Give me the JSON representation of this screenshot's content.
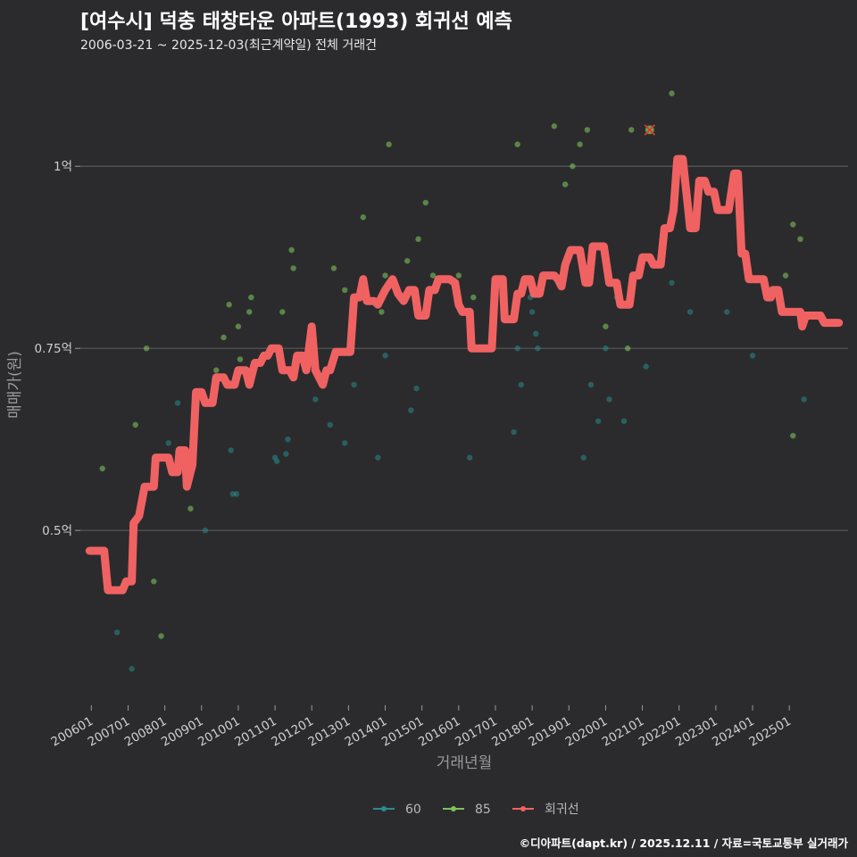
{
  "header": {
    "title": "[여수시] 덕충 태창타운 아파트(1993) 회귀선 예측",
    "subtitle": "2006-03-21 ~ 2025-12-03(최근계약일) 전체 거래건"
  },
  "footer": {
    "credit": "©디아파트(dapt.kr) / 2025.12.11 / 자료=국토교통부 실거래가"
  },
  "colors": {
    "s60": "#2a8b8b",
    "s85": "#7cc25a",
    "line": "#f06262",
    "grid": "#5a5a5a",
    "cross": "#d9382a"
  },
  "chart_data": {
    "type": "scatter",
    "title": "[여수시] 덕충 태창타운 아파트(1993) 회귀선 예측",
    "xlabel": "거래년월",
    "ylabel": "매매가(원)",
    "xlim": [
      2005.7,
      2026.6
    ],
    "ylim": [
      0.26,
      1.14
    ],
    "x_ticks": [
      {
        "x": 2006.0,
        "label": "200601"
      },
      {
        "x": 2007.0,
        "label": "200701"
      },
      {
        "x": 2008.0,
        "label": "200801"
      },
      {
        "x": 2009.0,
        "label": "200901"
      },
      {
        "x": 2010.0,
        "label": "201001"
      },
      {
        "x": 2011.0,
        "label": "201101"
      },
      {
        "x": 2012.0,
        "label": "201201"
      },
      {
        "x": 2013.0,
        "label": "201301"
      },
      {
        "x": 2014.0,
        "label": "201401"
      },
      {
        "x": 2015.0,
        "label": "201501"
      },
      {
        "x": 2016.0,
        "label": "201601"
      },
      {
        "x": 2017.0,
        "label": "201701"
      },
      {
        "x": 2018.0,
        "label": "201801"
      },
      {
        "x": 2019.0,
        "label": "201901"
      },
      {
        "x": 2020.0,
        "label": "202001"
      },
      {
        "x": 2021.0,
        "label": "202101"
      },
      {
        "x": 2022.0,
        "label": "202201"
      },
      {
        "x": 2023.0,
        "label": "202301"
      },
      {
        "x": 2024.0,
        "label": "202401"
      },
      {
        "x": 2025.0,
        "label": "202501"
      }
    ],
    "y_ticks": [
      {
        "y": 0.5,
        "label": "0.5억"
      },
      {
        "y": 0.75,
        "label": "0.75억"
      },
      {
        "y": 1.0,
        "label": "1억"
      }
    ],
    "legend": [
      {
        "key": "s60",
        "label": "60"
      },
      {
        "key": "s85",
        "label": "85"
      },
      {
        "key": "line",
        "label": "회귀선"
      }
    ],
    "series": [
      {
        "name": "60",
        "points": [
          [
            2006.7,
            0.36
          ],
          [
            2007.1,
            0.31
          ],
          [
            2008.1,
            0.62
          ],
          [
            2008.35,
            0.675
          ],
          [
            2009.1,
            0.5
          ],
          [
            2009.8,
            0.61
          ],
          [
            2009.85,
            0.55
          ],
          [
            2009.95,
            0.55
          ],
          [
            2010.2,
            0.715
          ],
          [
            2011.0,
            0.6
          ],
          [
            2011.05,
            0.595
          ],
          [
            2011.3,
            0.605
          ],
          [
            2011.35,
            0.625
          ],
          [
            2012.1,
            0.68
          ],
          [
            2012.5,
            0.645
          ],
          [
            2012.9,
            0.62
          ],
          [
            2013.15,
            0.7
          ],
          [
            2013.8,
            0.6
          ],
          [
            2014.0,
            0.74
          ],
          [
            2014.7,
            0.665
          ],
          [
            2014.85,
            0.695
          ],
          [
            2016.3,
            0.6
          ],
          [
            2017.5,
            0.635
          ],
          [
            2017.6,
            0.75
          ],
          [
            2017.7,
            0.7
          ],
          [
            2017.95,
            0.82
          ],
          [
            2018.0,
            0.8
          ],
          [
            2018.1,
            0.77
          ],
          [
            2018.15,
            0.75
          ],
          [
            2019.4,
            0.6
          ],
          [
            2019.6,
            0.7
          ],
          [
            2019.8,
            0.65
          ],
          [
            2020.0,
            0.75
          ],
          [
            2020.1,
            0.68
          ],
          [
            2020.3,
            0.82
          ],
          [
            2020.5,
            0.65
          ],
          [
            2021.1,
            0.725
          ],
          [
            2021.8,
            0.84
          ],
          [
            2022.3,
            0.8
          ],
          [
            2023.3,
            0.8
          ],
          [
            2024.0,
            0.74
          ],
          [
            2025.4,
            0.68
          ]
        ]
      },
      {
        "name": "85",
        "points": [
          [
            2006.3,
            0.585
          ],
          [
            2007.2,
            0.645
          ],
          [
            2007.5,
            0.75
          ],
          [
            2007.7,
            0.43
          ],
          [
            2007.9,
            0.355
          ],
          [
            2008.7,
            0.53
          ],
          [
            2009.4,
            0.72
          ],
          [
            2009.6,
            0.765
          ],
          [
            2009.75,
            0.81
          ],
          [
            2010.0,
            0.78
          ],
          [
            2010.05,
            0.735
          ],
          [
            2010.3,
            0.8
          ],
          [
            2010.35,
            0.82
          ],
          [
            2011.2,
            0.8
          ],
          [
            2011.45,
            0.885
          ],
          [
            2011.5,
            0.86
          ],
          [
            2012.6,
            0.86
          ],
          [
            2012.9,
            0.83
          ],
          [
            2013.4,
            0.93
          ],
          [
            2013.9,
            0.8
          ],
          [
            2014.0,
            0.85
          ],
          [
            2014.1,
            1.03
          ],
          [
            2014.6,
            0.87
          ],
          [
            2014.9,
            0.9
          ],
          [
            2015.1,
            0.95
          ],
          [
            2015.3,
            0.85
          ],
          [
            2016.0,
            0.85
          ],
          [
            2016.4,
            0.82
          ],
          [
            2017.6,
            1.03
          ],
          [
            2018.6,
            1.055
          ],
          [
            2018.9,
            0.975
          ],
          [
            2019.1,
            1.0
          ],
          [
            2019.3,
            1.03
          ],
          [
            2019.5,
            1.05
          ],
          [
            2020.0,
            0.78
          ],
          [
            2020.6,
            0.75
          ],
          [
            2020.7,
            1.05
          ],
          [
            2021.2,
            1.05
          ],
          [
            2021.8,
            1.1
          ],
          [
            2023.0,
            0.96
          ],
          [
            2024.9,
            0.85
          ],
          [
            2025.1,
            0.63
          ],
          [
            2025.1,
            0.92
          ],
          [
            2025.3,
            0.9
          ]
        ]
      },
      {
        "name": "회귀선",
        "points": [
          [
            2005.95,
            0.472
          ],
          [
            2006.35,
            0.472
          ],
          [
            2006.45,
            0.418
          ],
          [
            2006.85,
            0.418
          ],
          [
            2006.95,
            0.43
          ],
          [
            2007.1,
            0.43
          ],
          [
            2007.15,
            0.51
          ],
          [
            2007.3,
            0.52
          ],
          [
            2007.45,
            0.56
          ],
          [
            2007.7,
            0.56
          ],
          [
            2007.75,
            0.6
          ],
          [
            2008.1,
            0.6
          ],
          [
            2008.2,
            0.58
          ],
          [
            2008.35,
            0.58
          ],
          [
            2008.4,
            0.61
          ],
          [
            2008.55,
            0.61
          ],
          [
            2008.6,
            0.56
          ],
          [
            2008.75,
            0.59
          ],
          [
            2008.85,
            0.69
          ],
          [
            2009.0,
            0.69
          ],
          [
            2009.1,
            0.675
          ],
          [
            2009.3,
            0.675
          ],
          [
            2009.4,
            0.71
          ],
          [
            2009.6,
            0.71
          ],
          [
            2009.7,
            0.7
          ],
          [
            2009.9,
            0.7
          ],
          [
            2010.0,
            0.72
          ],
          [
            2010.2,
            0.72
          ],
          [
            2010.3,
            0.7
          ],
          [
            2010.45,
            0.73
          ],
          [
            2010.6,
            0.73
          ],
          [
            2010.7,
            0.74
          ],
          [
            2010.8,
            0.74
          ],
          [
            2010.9,
            0.75
          ],
          [
            2011.1,
            0.75
          ],
          [
            2011.2,
            0.72
          ],
          [
            2011.4,
            0.72
          ],
          [
            2011.5,
            0.71
          ],
          [
            2011.6,
            0.74
          ],
          [
            2011.75,
            0.74
          ],
          [
            2011.85,
            0.72
          ],
          [
            2012.0,
            0.78
          ],
          [
            2012.1,
            0.72
          ],
          [
            2012.3,
            0.7
          ],
          [
            2012.4,
            0.72
          ],
          [
            2012.5,
            0.72
          ],
          [
            2012.65,
            0.745
          ],
          [
            2012.9,
            0.745
          ],
          [
            2013.05,
            0.745
          ],
          [
            2013.15,
            0.82
          ],
          [
            2013.3,
            0.82
          ],
          [
            2013.4,
            0.845
          ],
          [
            2013.5,
            0.815
          ],
          [
            2013.7,
            0.815
          ],
          [
            2013.8,
            0.81
          ],
          [
            2014.0,
            0.83
          ],
          [
            2014.2,
            0.845
          ],
          [
            2014.35,
            0.825
          ],
          [
            2014.5,
            0.815
          ],
          [
            2014.65,
            0.83
          ],
          [
            2014.8,
            0.83
          ],
          [
            2014.9,
            0.795
          ],
          [
            2015.1,
            0.795
          ],
          [
            2015.2,
            0.83
          ],
          [
            2015.35,
            0.83
          ],
          [
            2015.45,
            0.845
          ],
          [
            2015.75,
            0.845
          ],
          [
            2015.9,
            0.84
          ],
          [
            2016.0,
            0.81
          ],
          [
            2016.1,
            0.8
          ],
          [
            2016.3,
            0.8
          ],
          [
            2016.35,
            0.75
          ],
          [
            2016.9,
            0.75
          ],
          [
            2017.0,
            0.845
          ],
          [
            2017.2,
            0.845
          ],
          [
            2017.25,
            0.79
          ],
          [
            2017.5,
            0.79
          ],
          [
            2017.6,
            0.825
          ],
          [
            2017.7,
            0.825
          ],
          [
            2017.8,
            0.845
          ],
          [
            2017.95,
            0.845
          ],
          [
            2018.05,
            0.825
          ],
          [
            2018.2,
            0.825
          ],
          [
            2018.3,
            0.85
          ],
          [
            2018.6,
            0.85
          ],
          [
            2018.7,
            0.845
          ],
          [
            2018.8,
            0.835
          ],
          [
            2018.9,
            0.865
          ],
          [
            2019.05,
            0.885
          ],
          [
            2019.3,
            0.885
          ],
          [
            2019.45,
            0.84
          ],
          [
            2019.55,
            0.84
          ],
          [
            2019.65,
            0.89
          ],
          [
            2019.95,
            0.89
          ],
          [
            2020.1,
            0.84
          ],
          [
            2020.3,
            0.84
          ],
          [
            2020.4,
            0.81
          ],
          [
            2020.65,
            0.81
          ],
          [
            2020.75,
            0.85
          ],
          [
            2020.9,
            0.85
          ],
          [
            2021.0,
            0.875
          ],
          [
            2021.2,
            0.875
          ],
          [
            2021.3,
            0.865
          ],
          [
            2021.5,
            0.865
          ],
          [
            2021.6,
            0.915
          ],
          [
            2021.75,
            0.915
          ],
          [
            2021.85,
            0.94
          ],
          [
            2021.95,
            1.01
          ],
          [
            2022.1,
            1.01
          ],
          [
            2022.25,
            0.94
          ],
          [
            2022.3,
            0.915
          ],
          [
            2022.45,
            0.915
          ],
          [
            2022.55,
            0.98
          ],
          [
            2022.7,
            0.98
          ],
          [
            2022.8,
            0.965
          ],
          [
            2022.95,
            0.965
          ],
          [
            2023.05,
            0.94
          ],
          [
            2023.35,
            0.94
          ],
          [
            2023.5,
            0.99
          ],
          [
            2023.6,
            0.99
          ],
          [
            2023.7,
            0.88
          ],
          [
            2023.8,
            0.88
          ],
          [
            2023.9,
            0.845
          ],
          [
            2024.3,
            0.845
          ],
          [
            2024.4,
            0.82
          ],
          [
            2024.5,
            0.82
          ],
          [
            2024.55,
            0.83
          ],
          [
            2024.7,
            0.83
          ],
          [
            2024.8,
            0.8
          ],
          [
            2025.0,
            0.8
          ],
          [
            2025.1,
            0.8
          ],
          [
            2025.3,
            0.8
          ],
          [
            2025.35,
            0.78
          ],
          [
            2025.45,
            0.795
          ],
          [
            2025.6,
            0.795
          ],
          [
            2025.85,
            0.795
          ],
          [
            2025.95,
            0.785
          ],
          [
            2026.35,
            0.785
          ]
        ]
      }
    ],
    "marker": {
      "x": 2021.2,
      "y": 1.05,
      "label": "×"
    }
  }
}
